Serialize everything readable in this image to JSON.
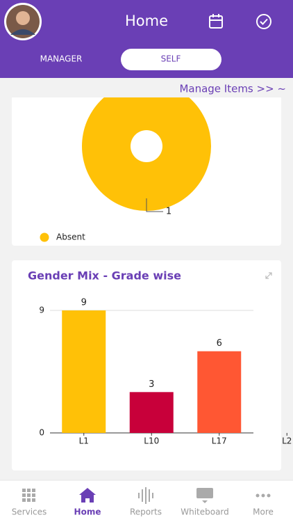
{
  "header": {
    "title": "Home"
  },
  "tabs": [
    "MANAGER",
    "SELF"
  ],
  "manage_items": "Manage Items >> ~",
  "chart_data": [
    {
      "type": "pie",
      "categories": [
        "Absent"
      ],
      "values": [
        1
      ],
      "colors": [
        "#ffc107"
      ],
      "legend": "bottom-left"
    },
    {
      "type": "bar",
      "title": "Gender Mix - Grade wise",
      "categories": [
        "L1",
        "L10",
        "L17",
        "L2"
      ],
      "values": [
        9,
        3,
        6,
        null
      ],
      "colors": [
        "#ffc107",
        "#c8003a",
        "#ff5733",
        "#ff5733"
      ],
      "ylim": [
        0,
        9
      ],
      "yticks": [
        0,
        9
      ],
      "grid": true
    }
  ],
  "nav": [
    "Services",
    "Home",
    "Reports",
    "Whiteboard",
    "More"
  ]
}
